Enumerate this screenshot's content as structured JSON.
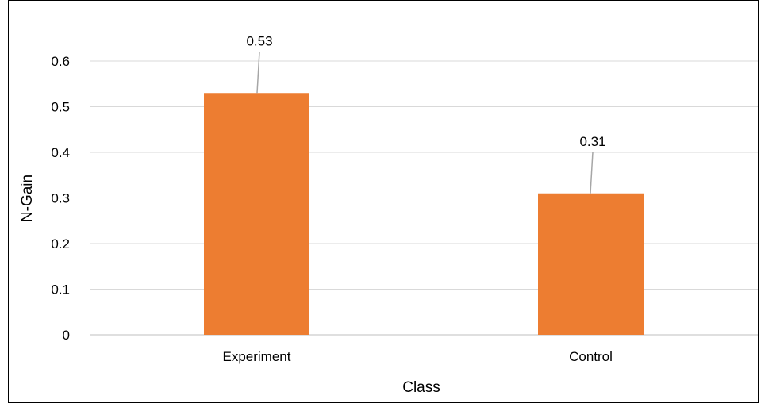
{
  "chart_data": {
    "type": "bar",
    "title": "",
    "xlabel": "Class",
    "ylabel": "N-Gain",
    "categories": [
      "Experiment",
      "Control"
    ],
    "values": [
      0.53,
      0.31
    ],
    "data_labels": [
      "0.53",
      "0.31"
    ],
    "ylim": [
      0,
      0.6
    ],
    "yticks": [
      0,
      0.1,
      0.2,
      0.3,
      0.4,
      0.5,
      0.6
    ],
    "ytick_labels": [
      "0",
      "0.1",
      "0.2",
      "0.3",
      "0.4",
      "0.5",
      "0.6"
    ],
    "grid": true,
    "legend": "none",
    "colors": {
      "bar": "#ED7D31",
      "gridline": "#D9D9D9",
      "leader_line": "#A6A6A6",
      "text": "#000000"
    }
  }
}
